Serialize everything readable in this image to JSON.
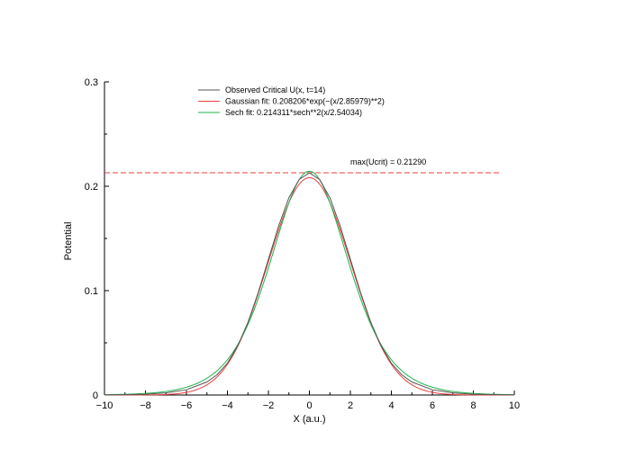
{
  "chart_data": {
    "type": "line",
    "xlabel": "X (a.u.)",
    "ylabel": "Potential",
    "xlim": [
      -10,
      10
    ],
    "ylim": [
      0,
      0.3
    ],
    "x_ticks": [
      -10,
      -8,
      -6,
      -4,
      -2,
      0,
      2,
      4,
      6,
      8,
      10
    ],
    "x_tick_labels": [
      "−10",
      "−8",
      "−6",
      "−4",
      "−2",
      "0",
      "2",
      "4",
      "6",
      "8",
      "10"
    ],
    "y_ticks": [
      0,
      0.1,
      0.2,
      0.3
    ],
    "y_tick_labels": [
      "0",
      "0.1",
      "0.2",
      "0.3"
    ],
    "grid": false,
    "legend_position": "top-center",
    "series": [
      {
        "name": "Observed Critical U(x, t=14)",
        "color": "#555555",
        "x": [
          -10,
          -9,
          -8,
          -7,
          -6,
          -5,
          -4.5,
          -4,
          -3.5,
          -3,
          -2.5,
          -2,
          -1.5,
          -1,
          -0.5,
          0,
          0.5,
          1,
          1.5,
          2,
          2.5,
          3,
          3.5,
          4,
          4.5,
          5,
          6,
          7,
          8,
          9,
          10
        ],
        "y": [
          0.0001,
          0.0003,
          0.0008,
          0.002,
          0.005,
          0.0125,
          0.0195,
          0.0305,
          0.047,
          0.0695,
          0.098,
          0.13,
          0.162,
          0.189,
          0.2065,
          0.2129,
          0.2065,
          0.189,
          0.162,
          0.13,
          0.098,
          0.0695,
          0.047,
          0.0305,
          0.0195,
          0.0125,
          0.005,
          0.002,
          0.0008,
          0.0003,
          0.0001
        ]
      },
      {
        "name": "Gaussian fit: 0.208206*exp(−(x/2.85979)**2)",
        "color": "#e8413c",
        "amplitude": 0.208206,
        "width": 2.85979
      },
      {
        "name": "Sech fit:  0.214311*sech**2(x/2.54034)",
        "color": "#22b24c",
        "amplitude": 0.214311,
        "width": 2.54034
      }
    ],
    "reference_line": {
      "y": 0.2129,
      "color": "#e8413c",
      "style": "dashed"
    },
    "annotations": [
      {
        "text": "max(Ucrit) = 0.21290",
        "x": 2.0,
        "y": 0.2209
      }
    ]
  }
}
